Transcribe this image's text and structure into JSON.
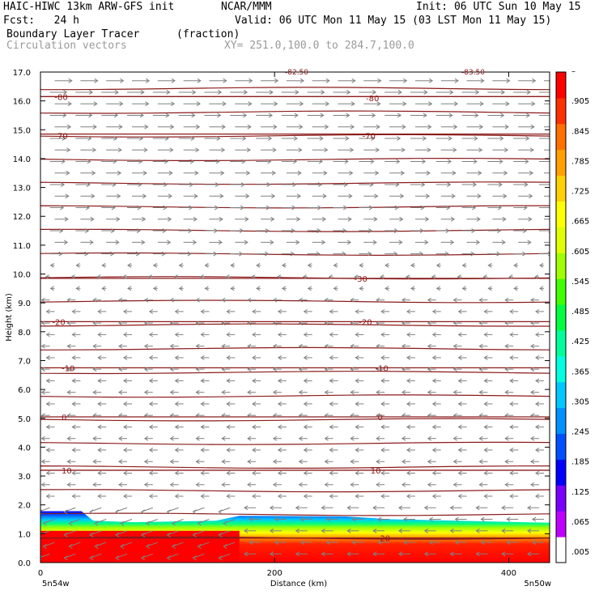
{
  "header": {
    "model": "HAIC-HIWC 13km ARW-GFS init",
    "org": "NCAR/MMM",
    "init": "Init: 06 UTC Sun 10 May 15",
    "fcst": "Fcst:   24 h",
    "valid": "Valid: 06 UTC Mon 11 May 15 (03 LST Mon 11 May 15)",
    "field1": "Boundary Layer Tracer",
    "field1_units": "(fraction)",
    "field2": "Circulation vectors",
    "xy": "XY= 251.0,100.0 to 284.7,100.0"
  },
  "colors": {
    "contour": "#8b1a1a",
    "vector": "#808080",
    "scale": [
      "#ffffff",
      "#c000ff",
      "#7a00ff",
      "#0000ff",
      "#0050ff",
      "#0090ff",
      "#00c8ff",
      "#00ffe0",
      "#00ff9a",
      "#00ff40",
      "#40ff00",
      "#a0ff00",
      "#e0ff00",
      "#ffff00",
      "#ffd000",
      "#ffa000",
      "#ff7000",
      "#ff3000",
      "#ff0000"
    ]
  },
  "chart_data": {
    "type": "heatmap",
    "title": "Boundary Layer Tracer",
    "xlabel": "Distance (km)",
    "ylabel": "Height (km)",
    "xlim": [
      0,
      435
    ],
    "ylim": [
      0,
      17
    ],
    "x_ticks": [
      "0",
      "200",
      "400"
    ],
    "y_ticks": [
      "0.0",
      "1.0",
      "2.0",
      "3.0",
      "4.0",
      "5.0",
      "6.0",
      "7.0",
      "8.0",
      "9.0",
      "10.0",
      "11.0",
      "12.0",
      "13.0",
      "14.0",
      "15.0",
      "16.0",
      "17.0"
    ],
    "x_end_labels": [
      "5n54w",
      "5n50w"
    ],
    "colorbar_labels": [
      ".005",
      ".065",
      ".125",
      ".185",
      ".245",
      ".305",
      ".365",
      ".425",
      ".485",
      ".545",
      ".605",
      ".665",
      ".725",
      ".785",
      ".845",
      ".905",
      "–"
    ],
    "boundary_layer_top_km": [
      {
        "x": 0,
        "y": 1.78
      },
      {
        "x": 35,
        "y": 1.78
      },
      {
        "x": 45,
        "y": 1.45
      },
      {
        "x": 80,
        "y": 1.4
      },
      {
        "x": 150,
        "y": 1.45
      },
      {
        "x": 170,
        "y": 1.62
      },
      {
        "x": 260,
        "y": 1.6
      },
      {
        "x": 300,
        "y": 1.5
      },
      {
        "x": 435,
        "y": 1.38
      }
    ],
    "temperature_contours": [
      {
        "label": "-80",
        "y": 16.15
      },
      {
        "label": "-70",
        "y": 14.85
      },
      {
        "label": "-30",
        "y": 9.85
      },
      {
        "label": "-20",
        "y": 8.35
      },
      {
        "label": "-10",
        "y": 6.75
      },
      {
        "label": "0",
        "y": 5.05
      },
      {
        "label": "10",
        "y": 3.2
      },
      {
        "label": "20",
        "y": 0.85
      }
    ],
    "contour_labels": [
      {
        "text": "-80",
        "x": 12,
        "y": 16.15
      },
      {
        "text": "-80",
        "x": 278,
        "y": 16.1
      },
      {
        "text": "-70",
        "x": 12,
        "y": 14.8
      },
      {
        "text": "-70",
        "x": 275,
        "y": 14.8
      },
      {
        "text": "-30",
        "x": 268,
        "y": 9.85
      },
      {
        "text": "-20",
        "x": 10,
        "y": 8.35
      },
      {
        "text": "-20",
        "x": 272,
        "y": 8.35
      },
      {
        "text": "-10",
        "x": 18,
        "y": 6.75
      },
      {
        "text": "-10",
        "x": 286,
        "y": 6.75
      },
      {
        "text": "0",
        "x": 18,
        "y": 5.05
      },
      {
        "text": "0",
        "x": 288,
        "y": 5.05
      },
      {
        "text": "10",
        "x": 18,
        "y": 3.2
      },
      {
        "text": "10",
        "x": 282,
        "y": 3.2
      },
      {
        "text": "20",
        "x": 290,
        "y": 0.85
      }
    ],
    "contour_values_top": [
      "-82.50",
      "-83.50"
    ],
    "wind_regimes": [
      {
        "from_km": 10.5,
        "to_km": 17,
        "direction": "eastward"
      },
      {
        "from_km": 9.5,
        "to_km": 10.5,
        "direction": "weak"
      },
      {
        "from_km": 0,
        "to_km": 9.5,
        "direction": "westward"
      }
    ]
  }
}
